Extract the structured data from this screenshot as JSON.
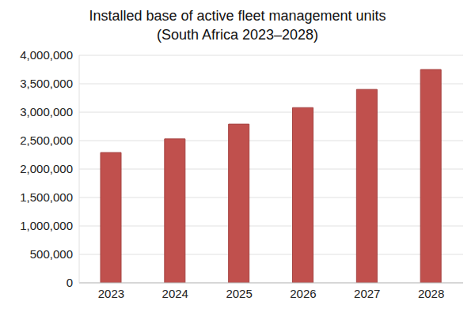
{
  "chart_data": {
    "type": "bar",
    "title": "Installed base of active fleet management units\n(South Africa 2023–2028)",
    "categories": [
      "2023",
      "2024",
      "2025",
      "2026",
      "2027",
      "2028"
    ],
    "values": [
      2290000,
      2530000,
      2790000,
      3080000,
      3400000,
      3750000
    ],
    "color": "#c0504d",
    "ylim": [
      0,
      4000000
    ],
    "yticks": [
      0,
      {
        "value": 500000,
        "label": "500,000"
      },
      {
        "value": 1000000,
        "label": "1,000,000"
      },
      {
        "value": 1500000,
        "label": "1,500,000"
      },
      {
        "value": 2000000,
        "label": "2,000,000"
      },
      {
        "value": 2500000,
        "label": "2,500,000"
      },
      {
        "value": 3000000,
        "label": "3,000,000"
      },
      {
        "value": 3500000,
        "label": "3,500,000"
      },
      {
        "value": 4000000,
        "label": "4,000,000"
      }
    ],
    "grid": true
  }
}
